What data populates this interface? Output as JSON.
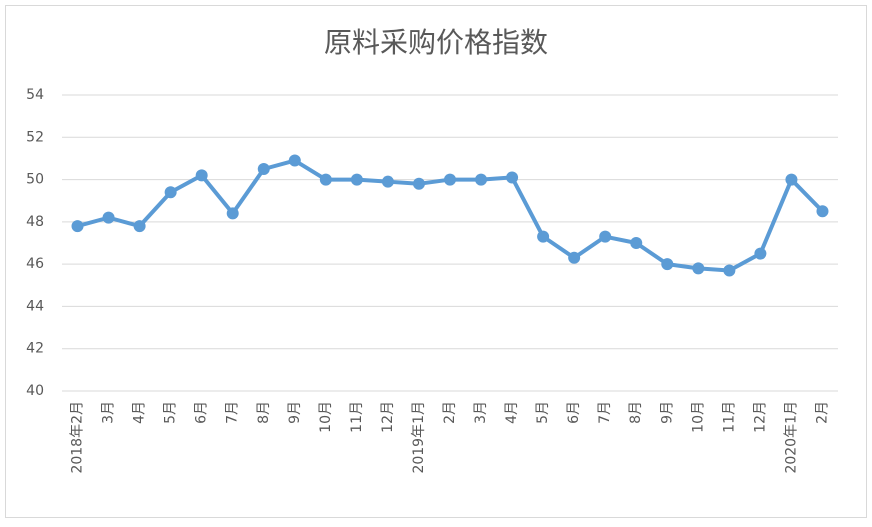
{
  "chart_data": {
    "type": "line",
    "title": "原料采购价格指数",
    "categories": [
      "2018年2月",
      "3月",
      "4月",
      "5月",
      "6月",
      "7月",
      "8月",
      "9月",
      "10月",
      "11月",
      "12月",
      "2019年1月",
      "2月",
      "3月",
      "4月",
      "5月",
      "6月",
      "7月",
      "8月",
      "9月",
      "10月",
      "11月",
      "12月",
      "2020年1月",
      "2月"
    ],
    "series": [
      {
        "name": "原料采购价格指数",
        "color": "#5b9bd5",
        "values": [
          47.8,
          48.2,
          47.8,
          49.4,
          50.2,
          48.4,
          50.5,
          50.9,
          50.0,
          50.0,
          49.9,
          49.8,
          50.0,
          50.0,
          50.1,
          47.3,
          46.3,
          47.3,
          47.0,
          46.0,
          45.8,
          45.7,
          46.5,
          50.0,
          48.5
        ]
      }
    ],
    "ylim": [
      40,
      54
    ],
    "yticks": [
      40,
      42,
      44,
      46,
      48,
      50,
      52,
      54
    ],
    "grid": true
  }
}
